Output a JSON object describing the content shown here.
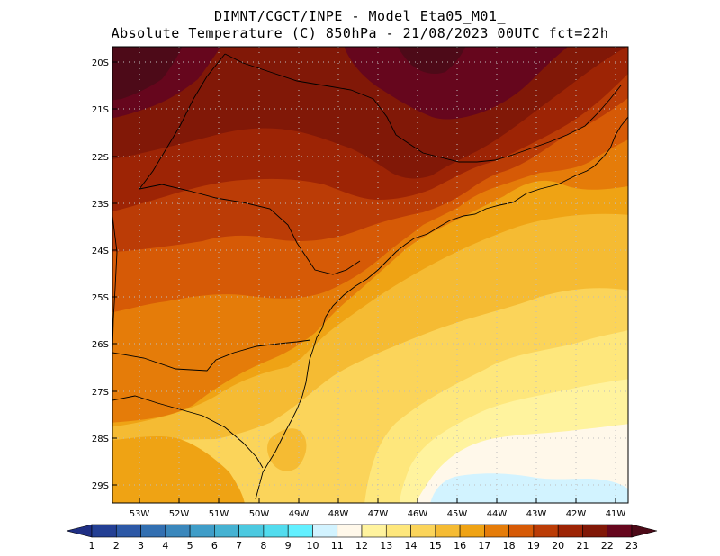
{
  "header": {
    "title_line1": "DIMNT/CGCT/INPE  -   Model Eta05_M01_",
    "title_line2": "Absolute Temperature (C) 850hPa  -   21/08/2023 00UTC fct=22h"
  },
  "map": {
    "lat_labels": [
      "20S",
      "21S",
      "22S",
      "23S",
      "24S",
      "25S",
      "26S",
      "27S",
      "28S",
      "29S"
    ],
    "lon_labels": [
      "53W",
      "52W",
      "51W",
      "50W",
      "49W",
      "48W",
      "47W",
      "46W",
      "45W",
      "44W",
      "43W",
      "42W",
      "41W"
    ]
  },
  "colorbar": {
    "labels": [
      "1",
      "2",
      "3",
      "4",
      "5",
      "6",
      "7",
      "8",
      "9",
      "10",
      "11",
      "12",
      "13",
      "14",
      "15",
      "16",
      "17",
      "18",
      "19",
      "20",
      "21",
      "22",
      "23"
    ],
    "colors": [
      "#1f2f84",
      "#233f94",
      "#2c58a6",
      "#326fb1",
      "#3a87bc",
      "#3f9dc8",
      "#45b2d2",
      "#4cc9e0",
      "#52dcee",
      "#62f0ff",
      "#d2f3ff",
      "#fff8ea",
      "#fff39e",
      "#fee77c",
      "#fbd45a",
      "#f5bb33",
      "#efa314",
      "#e57c09",
      "#d65a06",
      "#bb3c06",
      "#9d2405",
      "#811807",
      "#66061d",
      "#4d0a18"
    ]
  }
}
